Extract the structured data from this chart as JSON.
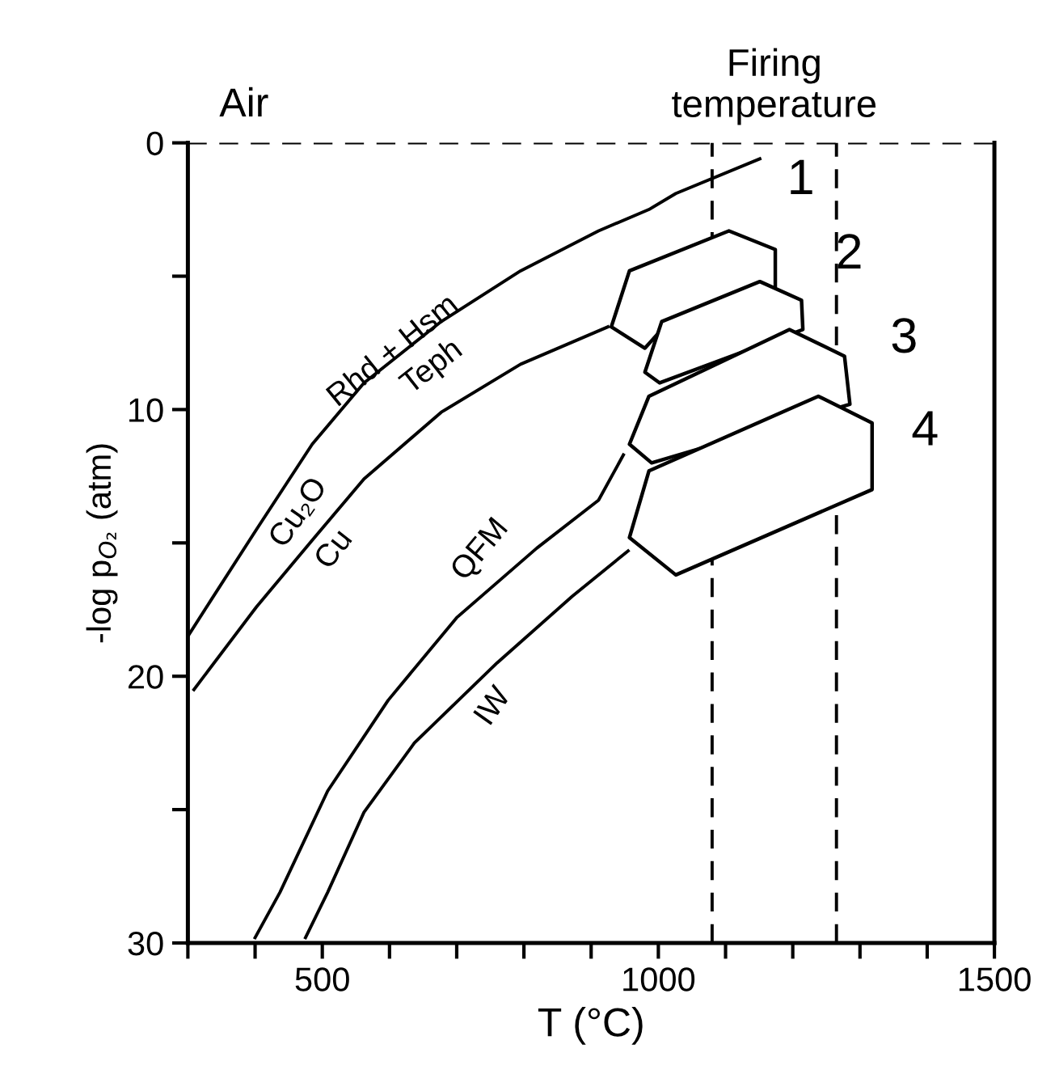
{
  "chart_data": {
    "type": "line",
    "xlabel": "T (°C)",
    "ylabel": "-log p$_{O₂}$ (atm)",
    "xlim": [
      300,
      1500
    ],
    "ylim": [
      30,
      0
    ],
    "xticks": [
      {
        "value": 300,
        "label": null
      },
      {
        "value": 400,
        "label": null
      },
      500,
      {
        "value": 600,
        "label": null
      },
      {
        "value": 700,
        "label": null
      },
      {
        "value": 800,
        "label": null
      },
      {
        "value": 900,
        "label": null
      },
      1000,
      {
        "value": 1100,
        "label": null
      },
      {
        "value": 1200,
        "label": null
      },
      {
        "value": 1300,
        "label": null
      },
      {
        "value": 1400,
        "label": null
      },
      1500
    ],
    "yticks": [
      0,
      {
        "value": 5,
        "label": null
      },
      10,
      {
        "value": 15,
        "label": null
      },
      20,
      {
        "value": 25,
        "label": null
      },
      30
    ],
    "grid": false,
    "marker": "none",
    "line_style": "solid",
    "series": [
      {
        "color": "#000000",
        "x": [
          300,
          333,
          402,
          485,
          562,
          677,
          795,
          911,
          986,
          1026,
          1151
        ],
        "values": [
          18.5,
          17.2,
          14.5,
          11.3,
          9.0,
          6.7,
          4.8,
          3.3,
          2.5,
          1.9,
          0.6
        ]
      },
      {
        "color": "#000000",
        "x": [
          309,
          402,
          485,
          562,
          677,
          795,
          925
        ],
        "values": [
          20.5,
          17.4,
          14.9,
          12.6,
          10.1,
          8.3,
          6.9
        ]
      },
      {
        "color": "#000000",
        "x": [
          400,
          437,
          508,
          598,
          700,
          819,
          911,
          948
        ],
        "values": [
          29.8,
          28.1,
          24.3,
          20.9,
          17.8,
          15.2,
          13.4,
          11.7
        ]
      },
      {
        "color": "#000000",
        "x": [
          475,
          508,
          562,
          637,
          760,
          872,
          955
        ],
        "values": [
          29.8,
          28.1,
          25.1,
          22.5,
          19.5,
          17.0,
          15.3
        ]
      },
      {
        "type": "area",
        "color": "#000000",
        "x": [
          930,
          957,
          1105,
          1174,
          1174,
          1005,
          980,
          930
        ],
        "values": [
          6.9,
          4.8,
          3.3,
          4.0,
          5.4,
          7.0,
          7.7,
          6.9
        ]
      },
      {
        "type": "area",
        "color": "#000000",
        "x": [
          980,
          1005,
          1151,
          1213,
          1215,
          1002,
          980
        ],
        "values": [
          8.6,
          6.7,
          5.2,
          5.9,
          7.0,
          9.0,
          8.6
        ]
      },
      {
        "type": "area",
        "color": "#000000",
        "x": [
          957,
          986,
          1195,
          1277,
          1285,
          990,
          957
        ],
        "values": [
          11.3,
          9.5,
          7.0,
          8.0,
          9.8,
          12.0,
          11.3
        ]
      },
      {
        "type": "area",
        "color": "#000000",
        "x": [
          957,
          986,
          1238,
          1318,
          1318,
          1026,
          957
        ],
        "values": [
          14.8,
          12.3,
          9.5,
          10.5,
          13.0,
          16.2,
          14.8
        ]
      }
    ],
    "ref_lines": [
      {
        "axis": "y",
        "value": 0,
        "label": "Air",
        "color": "#000000",
        "line_style": "dashed"
      },
      {
        "axis": "x",
        "value": 1080,
        "label": null,
        "color": "#000000",
        "line_style": "dashed"
      },
      {
        "axis": "x",
        "value": 1265,
        "label": null,
        "color": "#000000",
        "line_style": "dashed"
      }
    ],
    "annotations": [
      "Firing\ntemperature",
      "Rhd + Hsm",
      "Teph",
      "Cu₂O",
      "Cu",
      "QFM",
      "IW",
      "1",
      "2",
      "3",
      "4"
    ]
  }
}
